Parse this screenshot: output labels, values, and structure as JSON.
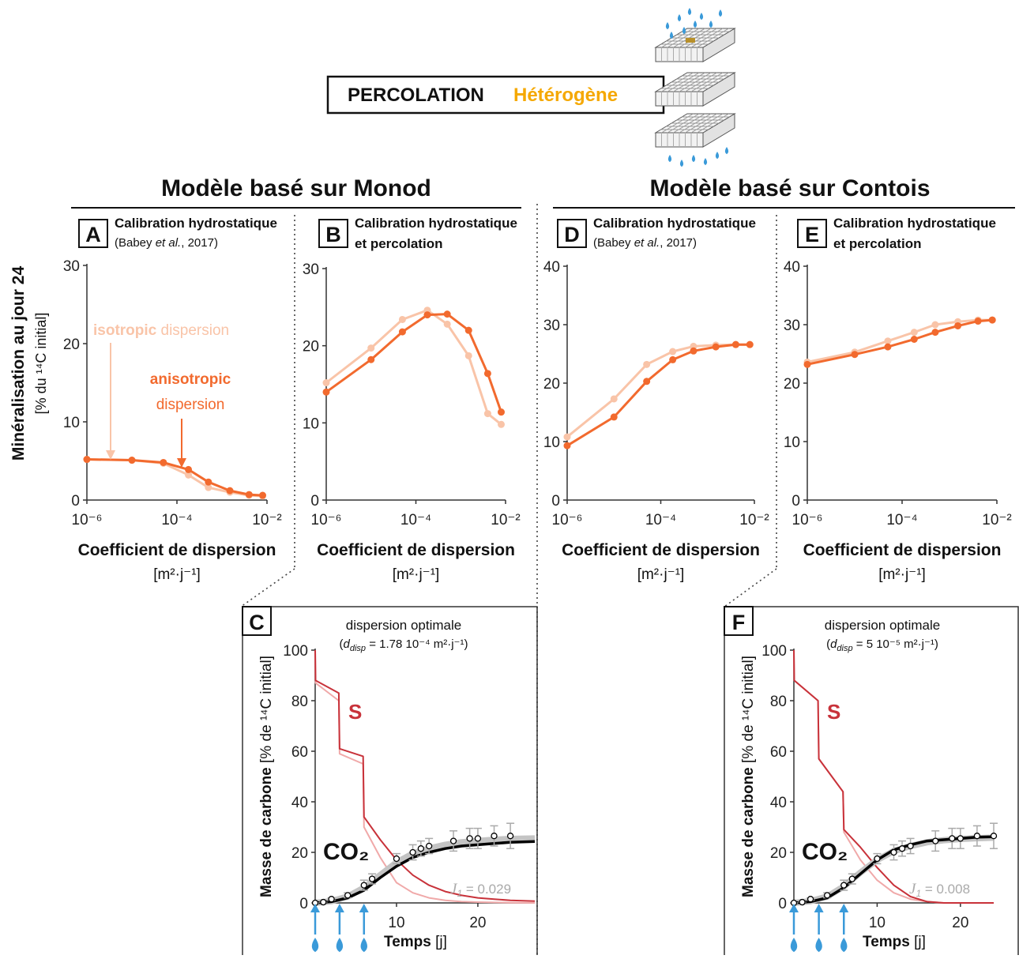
{
  "header": {
    "title": "PERCOLATION",
    "subtitle": "Hétérogène"
  },
  "sections": [
    "Modèle basé sur Monod",
    "Modèle basé sur Contois"
  ],
  "y_label": {
    "main": "Minéralisation au jour 24",
    "unit": "[% du ¹⁴C initial]"
  },
  "chart_data": [
    {
      "type": "line",
      "panel": "A",
      "title": "Calibration hydrostatique",
      "note_parts": [
        "(Babey ",
        "et al.",
        ", 2017)"
      ],
      "x_label": "Coefficient de dispersion",
      "x_unit": "[m²·j⁻¹]",
      "xlog": true,
      "xlim": [
        1e-06,
        0.01
      ],
      "xticks": [
        {
          "value": 1e-06,
          "label": "10⁻⁶"
        },
        {
          "value": 0.0001,
          "label": "10⁻⁴"
        },
        {
          "value": 0.01,
          "label": "10⁻²"
        }
      ],
      "ylim": [
        0,
        30
      ],
      "yticks": [
        0,
        10,
        20,
        30
      ],
      "x": [
        1e-06,
        1e-05,
        5e-05,
        0.00018,
        0.0005,
        0.0015,
        0.004,
        0.008
      ],
      "series": [
        {
          "color": "#f9c4a8",
          "values": [
            5.2,
            5.1,
            4.7,
            3.2,
            1.6,
            1.0,
            0.6,
            0.5
          ]
        },
        {
          "color": "#f26a2e",
          "values": [
            5.2,
            5.1,
            4.8,
            3.9,
            2.3,
            1.2,
            0.7,
            0.6
          ]
        }
      ],
      "annotations": [
        {
          "bold": "isotropic",
          "text": " dispersion",
          "series": 0
        },
        {
          "bold": "anisotropic",
          "text": "dispersion",
          "series": 1
        }
      ]
    },
    {
      "type": "line",
      "panel": "B",
      "title": "Calibration hydrostatique",
      "title2": "et percolation",
      "x_label": "Coefficient de dispersion",
      "x_unit": "[m²·j⁻¹]",
      "xlog": true,
      "xlim": [
        1e-06,
        0.01
      ],
      "xticks": [
        {
          "value": 1e-06,
          "label": "10⁻⁶"
        },
        {
          "value": 0.0001,
          "label": "10⁻⁴"
        },
        {
          "value": 0.01,
          "label": "10⁻²"
        }
      ],
      "ylim": [
        0,
        30
      ],
      "yticks": [
        0,
        10,
        20,
        30
      ],
      "x": [
        1e-06,
        1e-05,
        5e-05,
        0.00018,
        0.0005,
        0.0015,
        0.004,
        0.008
      ],
      "series": [
        {
          "color": "#f9c4a8",
          "values": [
            15.2,
            19.7,
            23.4,
            24.6,
            22.8,
            18.7,
            11.2,
            9.8
          ]
        },
        {
          "color": "#f26a2e",
          "values": [
            14,
            18.2,
            21.8,
            24,
            24.1,
            22,
            16.4,
            11.4
          ]
        }
      ]
    },
    {
      "type": "line",
      "panel": "D",
      "title": "Calibration hydrostatique",
      "note_parts": [
        "(Babey ",
        "et al.",
        ", 2017)"
      ],
      "x_label": "Coefficient de dispersion",
      "x_unit": "[m²·j⁻¹]",
      "xlog": true,
      "xlim": [
        1e-06,
        0.01
      ],
      "xticks": [
        {
          "value": 1e-06,
          "label": "10⁻⁶"
        },
        {
          "value": 0.0001,
          "label": "10⁻⁴"
        },
        {
          "value": 0.01,
          "label": "10⁻²"
        }
      ],
      "ylim": [
        0,
        40
      ],
      "yticks": [
        0,
        10,
        20,
        30,
        40
      ],
      "x": [
        1e-06,
        1e-05,
        5e-05,
        0.00018,
        0.0005,
        0.0015,
        0.004,
        0.008
      ],
      "series": [
        {
          "color": "#f9c4a8",
          "values": [
            10.8,
            17.3,
            23.2,
            25.4,
            26.3,
            26.5,
            26.6,
            26.6
          ]
        },
        {
          "color": "#f26a2e",
          "values": [
            9.3,
            14.2,
            20.3,
            24,
            25.5,
            26.2,
            26.6,
            26.6
          ]
        }
      ]
    },
    {
      "type": "line",
      "panel": "E",
      "title": "Calibration hydrostatique",
      "title2": "et percolation",
      "x_label": "Coefficient de dispersion",
      "x_unit": "[m²·j⁻¹]",
      "xlog": true,
      "xlim": [
        1e-06,
        0.01
      ],
      "xticks": [
        {
          "value": 1e-06,
          "label": "10⁻⁶"
        },
        {
          "value": 0.0001,
          "label": "10⁻⁴"
        },
        {
          "value": 0.01,
          "label": "10⁻²"
        }
      ],
      "ylim": [
        0,
        40
      ],
      "yticks": [
        0,
        10,
        20,
        30,
        40
      ],
      "x": [
        1e-06,
        1e-05,
        5e-05,
        0.00018,
        0.0005,
        0.0015,
        0.004,
        0.008
      ],
      "series": [
        {
          "color": "#f9c4a8",
          "values": [
            23.6,
            25.3,
            27.2,
            28.7,
            30,
            30.5,
            30.8,
            30.8
          ]
        },
        {
          "color": "#f26a2e",
          "values": [
            23.2,
            24.9,
            26.2,
            27.5,
            28.7,
            29.8,
            30.6,
            30.8
          ]
        }
      ]
    },
    {
      "type": "time",
      "panel": "C",
      "title": "dispersion optimale",
      "formula_parts": [
        "(",
        "d",
        "disp",
        " = 1.78 10⁻⁴ m²·j⁻¹)"
      ],
      "x_label": "Temps",
      "x_unit": " [j]",
      "y_label": "Masse de carbone",
      "y_unit": " [% de ¹⁴C initial]",
      "xlim": [
        0,
        27
      ],
      "xticks": [
        10,
        20
      ],
      "ylim": [
        0,
        100
      ],
      "yticks": [
        0,
        20,
        40,
        60,
        80,
        100
      ],
      "s_label": "S",
      "co2_label": "CO₂",
      "fit_parts": [
        "J",
        "1",
        " = 0.029"
      ],
      "injections": [
        0,
        3,
        6
      ],
      "series": [
        {
          "style": "line",
          "color": "#f0a9a9",
          "x": [
            0,
            0.05,
            2.9,
            3.0,
            5.9,
            6.0,
            8,
            10,
            12,
            14,
            16,
            18,
            20,
            22,
            24,
            27
          ],
          "values": [
            100,
            87,
            80,
            59,
            55,
            30,
            18,
            8,
            4,
            2,
            1,
            0.5,
            0.3,
            0.2,
            0.1,
            0
          ]
        },
        {
          "style": "line",
          "color": "#c8323a",
          "x": [
            0,
            0.05,
            2.9,
            3.0,
            5.9,
            6.0,
            8,
            10,
            12,
            14,
            16,
            18,
            20,
            22,
            24,
            27
          ],
          "values": [
            100,
            88,
            83,
            61,
            58,
            34,
            25,
            17,
            11,
            7,
            4.5,
            3,
            2,
            1.5,
            1,
            0.7
          ]
        },
        {
          "style": "band",
          "color": "#c4c4c4",
          "x": [
            0,
            2,
            4,
            6,
            8,
            10,
            12,
            14,
            16,
            18,
            20,
            22,
            24,
            27
          ],
          "values": [
            0,
            0.7,
            2.5,
            6,
            11,
            16,
            19.5,
            21.5,
            23,
            24,
            24.5,
            25,
            25.3,
            25.5
          ]
        },
        {
          "style": "thick",
          "color": "#000000",
          "x": [
            0,
            2,
            4,
            6,
            8,
            10,
            12,
            14,
            16,
            18,
            20,
            22,
            24,
            27
          ],
          "values": [
            0,
            0.5,
            2,
            5,
            10,
            14.5,
            18,
            20,
            21.5,
            22.5,
            23,
            23.5,
            24,
            24.3
          ]
        },
        {
          "style": "points",
          "color": "#000000",
          "x": [
            0,
            1,
            2,
            4,
            6,
            7,
            10,
            12,
            13,
            14,
            17,
            19,
            20,
            22,
            24
          ],
          "values": [
            0,
            0.3,
            1.5,
            3,
            7,
            9.5,
            17.5,
            20,
            21.5,
            22.5,
            24.5,
            25.5,
            25.5,
            26.5,
            26.5
          ],
          "errors": [
            0,
            0,
            0.5,
            1,
            2,
            2,
            2,
            3,
            3,
            3,
            4,
            4,
            4,
            4,
            5
          ]
        }
      ]
    },
    {
      "type": "time",
      "panel": "F",
      "title": "dispersion optimale",
      "formula_parts": [
        "(",
        "d",
        "disp",
        " = 5 10⁻⁵ m²·j⁻¹)"
      ],
      "x_label": "Temps",
      "x_unit": " [j]",
      "y_label": "Masse de carbone",
      "y_unit": " [% de ¹⁴C initial]",
      "xlim": [
        0,
        24
      ],
      "xticks": [
        10,
        20
      ],
      "ylim": [
        0,
        100
      ],
      "yticks": [
        0,
        20,
        40,
        60,
        80,
        100
      ],
      "s_label": "S",
      "co2_label": "CO₂",
      "fit_parts": [
        "J",
        "1",
        " = 0.008"
      ],
      "injections": [
        0,
        3,
        6
      ],
      "series": [
        {
          "style": "line",
          "color": "#f0a9a9",
          "x": [
            0,
            0.05,
            2.9,
            3.0,
            5.9,
            6.0,
            8,
            10,
            12,
            14,
            16,
            18,
            20,
            22,
            24
          ],
          "values": [
            100,
            88,
            80,
            57,
            44,
            28,
            17,
            9,
            4,
            1.5,
            0.5,
            0,
            0,
            0,
            0
          ]
        },
        {
          "style": "line",
          "color": "#c8323a",
          "x": [
            0,
            0.05,
            2.9,
            3.0,
            5.9,
            6.0,
            8,
            10,
            12,
            14,
            16,
            18,
            20,
            22,
            24
          ],
          "values": [
            100,
            88,
            80,
            57,
            44,
            29,
            22,
            14,
            7,
            2.5,
            0.5,
            0,
            0,
            0,
            0
          ]
        },
        {
          "style": "band",
          "color": "#c4c4c4",
          "x": [
            0,
            2,
            4,
            6,
            8,
            10,
            12,
            14,
            16,
            18,
            20,
            22,
            24
          ],
          "values": [
            0,
            0.7,
            2.5,
            6.5,
            12,
            17,
            20.5,
            22.5,
            24,
            24.8,
            25.3,
            25.6,
            25.8
          ]
        },
        {
          "style": "thick",
          "color": "#000000",
          "x": [
            0,
            2,
            4,
            6,
            8,
            10,
            12,
            14,
            16,
            18,
            20,
            22,
            24
          ],
          "values": [
            0,
            0.5,
            2,
            6,
            11.5,
            17,
            21,
            23,
            24.5,
            25,
            25.5,
            26,
            26.2
          ]
        },
        {
          "style": "points",
          "color": "#000000",
          "x": [
            0,
            1,
            2,
            4,
            6,
            7,
            10,
            12,
            13,
            14,
            17,
            19,
            20,
            22,
            24
          ],
          "values": [
            0,
            0.3,
            1.5,
            3,
            7,
            9.5,
            17.5,
            20,
            21.5,
            22.5,
            24.5,
            25.5,
            25.5,
            26.5,
            26.5
          ],
          "errors": [
            0,
            0,
            0.5,
            1,
            2,
            2,
            2,
            3,
            3,
            3,
            4,
            4,
            4,
            4,
            5
          ]
        }
      ]
    }
  ]
}
